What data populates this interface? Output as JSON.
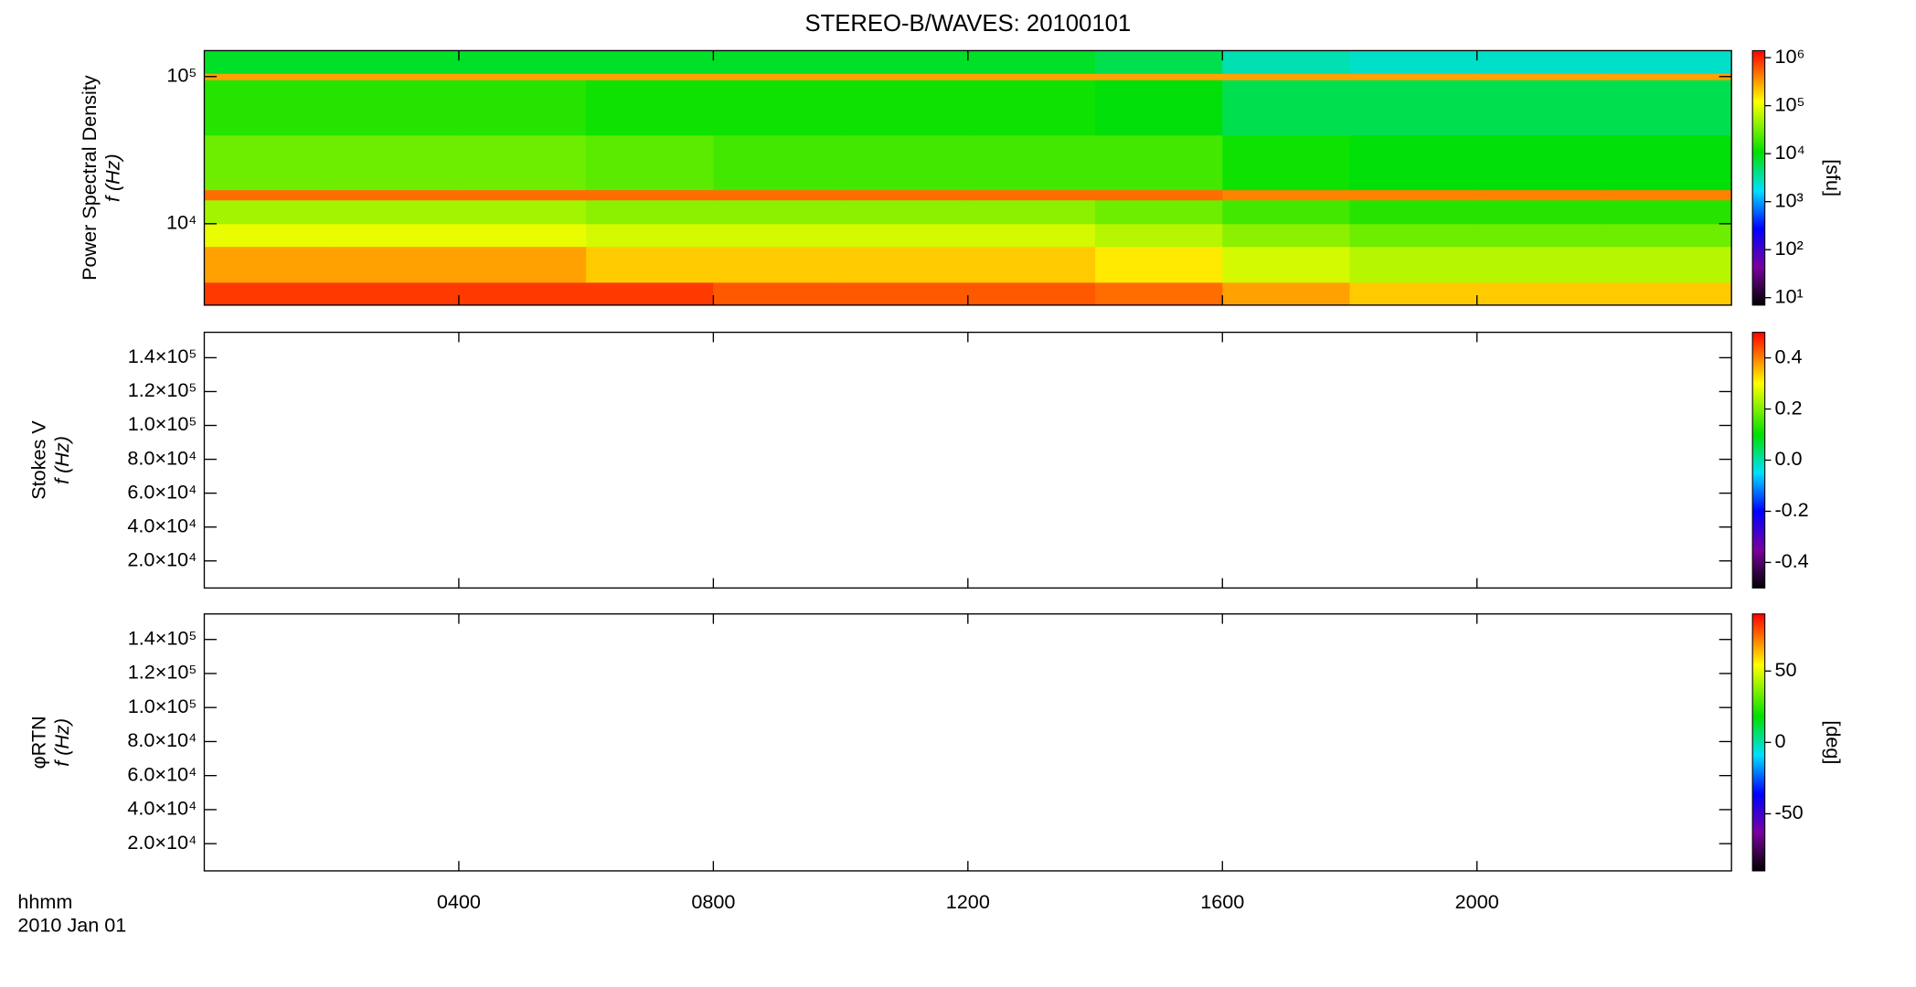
{
  "chart_data": [
    {
      "type": "heatmap",
      "title": "STEREO-B/WAVES: 20100101",
      "ylabel": "Power Spectral Density",
      "ylabel2": "f (Hz)",
      "yscale": "log",
      "ylim": [
        2800,
        150000
      ],
      "yticks": [
        {
          "value": 10000,
          "label": "10⁴"
        },
        {
          "value": 100000,
          "label": "10⁵"
        }
      ],
      "xlim": [
        0,
        24
      ],
      "x_bins": [
        0,
        2,
        4,
        6,
        8,
        10,
        12,
        14,
        16,
        18,
        20,
        22,
        24
      ],
      "y_bins": [
        2800,
        4000,
        7000,
        10000,
        14500,
        17000,
        40000,
        95000,
        105000,
        150000
      ],
      "z": [
        [
          800000,
          800000,
          800000,
          800000,
          600000,
          600000,
          600000,
          500000,
          300000,
          200000,
          200000,
          200000
        ],
        [
          300000,
          300000,
          300000,
          200000,
          200000,
          200000,
          200000,
          150000,
          80000,
          60000,
          60000,
          60000
        ],
        [
          100000,
          100000,
          100000,
          80000,
          80000,
          80000,
          80000,
          60000,
          40000,
          30000,
          30000,
          30000
        ],
        [
          50000,
          50000,
          50000,
          40000,
          40000,
          40000,
          40000,
          30000,
          20000,
          15000,
          15000,
          15000
        ],
        [
          500000,
          500000,
          500000,
          500000,
          500000,
          500000,
          500000,
          500000,
          400000,
          400000,
          400000,
          400000
        ],
        [
          30000,
          30000,
          30000,
          25000,
          20000,
          20000,
          20000,
          20000,
          12000,
          10000,
          10000,
          10000
        ],
        [
          15000,
          15000,
          15000,
          12000,
          12000,
          12000,
          12000,
          10000,
          6000,
          6000,
          6000,
          6000
        ],
        [
          300000,
          300000,
          300000,
          300000,
          300000,
          300000,
          300000,
          300000,
          300000,
          300000,
          300000,
          300000
        ],
        [
          8000,
          8000,
          8000,
          8000,
          8000,
          8000,
          8000,
          6000,
          3000,
          2500,
          2500,
          2500
        ]
      ],
      "colormap": "rainbow",
      "zscale": "log",
      "zlim": [
        7,
        1400000
      ],
      "zticks": [
        {
          "value": 10,
          "label": "10¹"
        },
        {
          "value": 100,
          "label": "10²"
        },
        {
          "value": 1000,
          "label": "10³"
        },
        {
          "value": 10000,
          "label": "10⁴"
        },
        {
          "value": 100000,
          "label": "10⁵"
        },
        {
          "value": 1000000,
          "label": "10⁶"
        }
      ],
      "zlabel": "[sfu]"
    },
    {
      "type": "heatmap",
      "ylabel": "Stokes V",
      "ylabel2": "f (Hz)",
      "yscale": "linear",
      "ylim": [
        4000,
        155000
      ],
      "yticks": [
        {
          "value": 20000,
          "label": "2.0×10⁴"
        },
        {
          "value": 40000,
          "label": "4.0×10⁴"
        },
        {
          "value": 60000,
          "label": "6.0×10⁴"
        },
        {
          "value": 80000,
          "label": "8.0×10⁴"
        },
        {
          "value": 100000,
          "label": "1.0×10⁵"
        },
        {
          "value": 120000,
          "label": "1.2×10⁵"
        },
        {
          "value": 140000,
          "label": "1.4×10⁵"
        }
      ],
      "xlim": [
        0,
        24
      ],
      "colormap": "rainbow",
      "zscale": "linear",
      "zlim": [
        -0.5,
        0.5
      ],
      "zticks": [
        -0.4,
        -0.2,
        {
          "value": 0,
          "label": "0.0"
        },
        0.2,
        0.4
      ]
    },
    {
      "type": "heatmap",
      "ylabel": "φRTN",
      "ylabel2": "f (Hz)",
      "yscale": "linear",
      "ylim": [
        4000,
        155000
      ],
      "yticks": [
        {
          "value": 20000,
          "label": "2.0×10⁴"
        },
        {
          "value": 40000,
          "label": "4.0×10⁴"
        },
        {
          "value": 60000,
          "label": "6.0×10⁴"
        },
        {
          "value": 80000,
          "label": "8.0×10⁴"
        },
        {
          "value": 100000,
          "label": "1.0×10⁵"
        },
        {
          "value": 120000,
          "label": "1.2×10⁵"
        },
        {
          "value": 140000,
          "label": "1.4×10⁵"
        }
      ],
      "xlim": [
        0,
        24
      ],
      "xticks": [
        {
          "value": 4,
          "label": "0400"
        },
        {
          "value": 8,
          "label": "0800"
        },
        {
          "value": 12,
          "label": "1200"
        },
        {
          "value": 16,
          "label": "1600"
        },
        {
          "value": 20,
          "label": "2000"
        }
      ],
      "xlabel": "hhmm",
      "date": "2010 Jan 01",
      "colormap": "rainbow",
      "zscale": "linear",
      "zlim": [
        -90,
        90
      ],
      "zticks": [
        -50,
        0,
        50
      ],
      "zlabel": "[deg]"
    }
  ]
}
